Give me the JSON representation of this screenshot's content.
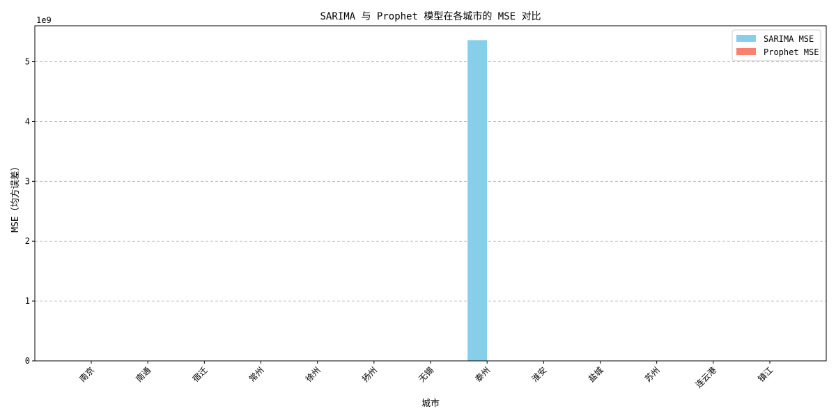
{
  "chart_data": {
    "type": "bar",
    "title": "SARIMA 与 Prophet 模型在各城市的 MSE 对比",
    "xlabel": "城市",
    "ylabel": "MSE（均方误差）",
    "y_scale_label": "1e9",
    "y_multiplier": 1000000000,
    "ylim": [
      0,
      5.6
    ],
    "yticks": [
      0,
      1,
      2,
      3,
      4,
      5
    ],
    "grid": "y-dashed",
    "legend_placement": "top-right",
    "categories": [
      "南京",
      "南通",
      "宿迁",
      "常州",
      "徐州",
      "扬州",
      "无锡",
      "泰州",
      "淮安",
      "盐城",
      "苏州",
      "连云港",
      "镇江"
    ],
    "series": [
      {
        "name": "SARIMA MSE",
        "color": "#87ceeb",
        "values": [
          0,
          0,
          0,
          0,
          0,
          0,
          0,
          5.36,
          0,
          0,
          0,
          0,
          0
        ]
      },
      {
        "name": "Prophet MSE",
        "color": "#fa8072",
        "values": [
          0,
          0,
          0,
          0,
          0,
          0,
          0,
          0,
          0,
          0,
          0,
          0,
          0
        ]
      }
    ]
  }
}
